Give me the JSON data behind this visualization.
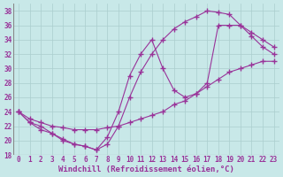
{
  "xlabel": "Windchill (Refroidissement éolien,°C)",
  "background_color": "#c8e8e8",
  "line_color": "#993399",
  "xlim": [
    -0.5,
    23.5
  ],
  "ylim": [
    18,
    39
  ],
  "xticks": [
    0,
    1,
    2,
    3,
    4,
    5,
    6,
    7,
    8,
    9,
    10,
    11,
    12,
    13,
    14,
    15,
    16,
    17,
    18,
    19,
    20,
    21,
    22,
    23
  ],
  "yticks": [
    18,
    20,
    22,
    24,
    26,
    28,
    30,
    32,
    34,
    36,
    38
  ],
  "line1_x": [
    0,
    1,
    2,
    3,
    4,
    5,
    6,
    7,
    8,
    9,
    10,
    11,
    12,
    13,
    14,
    15,
    16,
    17,
    18,
    19,
    20,
    21,
    22,
    23
  ],
  "line1_y": [
    24,
    22.5,
    22,
    21,
    20.2,
    19.5,
    19.2,
    18.7,
    19.5,
    22,
    26,
    29.5,
    32,
    34,
    35.5,
    36.5,
    37.2,
    38,
    37.8,
    37.5,
    36,
    34.5,
    33,
    32
  ],
  "line2_x": [
    0,
    1,
    2,
    3,
    4,
    5,
    6,
    7,
    8,
    9,
    10,
    11,
    12,
    13,
    14,
    15,
    16,
    17,
    18,
    19,
    20,
    21,
    22,
    23
  ],
  "line2_y": [
    24,
    23,
    22.5,
    22,
    21.8,
    21.5,
    21.5,
    21.5,
    21.8,
    22,
    22.5,
    23,
    23.5,
    24,
    25,
    25.5,
    26.5,
    27.5,
    28.5,
    29.5,
    30,
    30.5,
    31,
    31
  ],
  "line3_x": [
    0,
    1,
    2,
    3,
    4,
    5,
    6,
    7,
    8,
    9,
    10,
    11,
    12,
    13,
    14,
    15,
    16,
    17,
    18,
    19,
    20,
    21,
    22,
    23
  ],
  "line3_y": [
    24,
    22.5,
    21.5,
    21,
    20,
    19.5,
    19.2,
    18.7,
    20.5,
    24,
    29,
    32,
    34,
    30,
    27,
    26,
    26.5,
    28,
    36,
    36,
    36,
    35,
    34,
    33
  ],
  "grid_color": "#aacece",
  "tick_fontsize": 5.5,
  "xlabel_fontsize": 6.5
}
